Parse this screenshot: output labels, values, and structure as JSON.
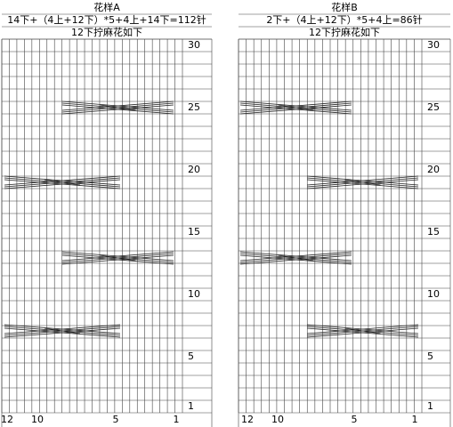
{
  "panels": [
    {
      "title": "花样A",
      "formula": "14下+（4上+12下）*5+4上+14下=112针",
      "note": "12下拧麻花如下",
      "row_labels": [
        "30",
        "25",
        "20",
        "15",
        "10",
        "5",
        "1"
      ],
      "column_labels": [
        "12",
        "10",
        "5",
        "1"
      ]
    },
    {
      "title": "花样B",
      "formula": "2下+（4上+12下）*5+4上=86针",
      "note": "12下拧麻花如下",
      "row_labels": [
        "30",
        "25",
        "20",
        "15",
        "10",
        "5",
        "1"
      ],
      "column_labels": [
        "12",
        "10",
        "5",
        "1"
      ]
    }
  ]
}
